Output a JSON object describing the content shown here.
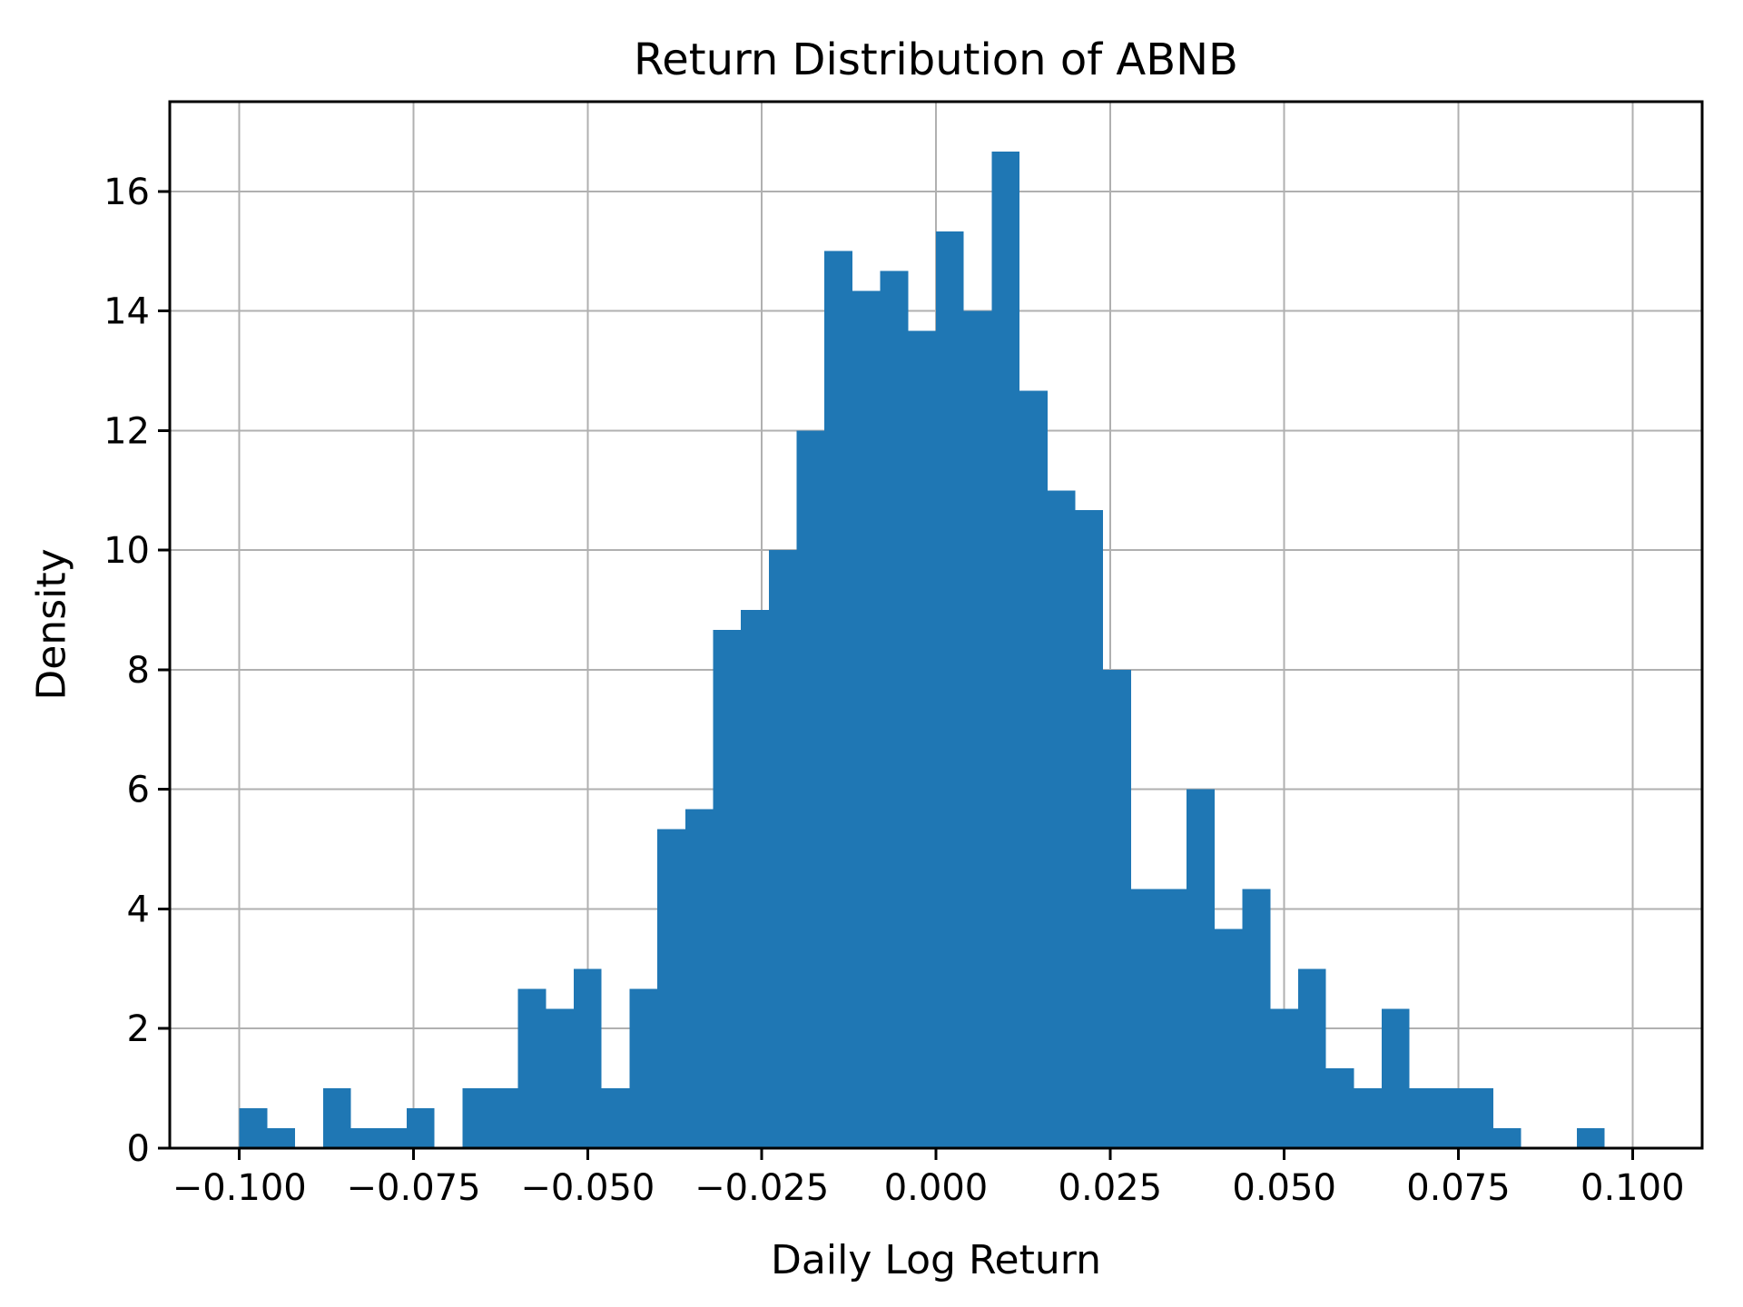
{
  "figure": {
    "background_color": "#ffffff"
  },
  "chart_data": {
    "type": "bar",
    "subtype": "histogram",
    "title": "Return Distribution of ABNB",
    "xlabel": "Daily Log Return",
    "ylabel": "Density",
    "bin_start": -0.1,
    "bin_width": 0.004,
    "densities": [
      0.6667,
      0.3333,
      0,
      1.0,
      0.3333,
      0.3333,
      0.6667,
      0,
      1.0,
      1.0,
      2.6667,
      2.3333,
      3.0,
      1.0,
      2.6667,
      5.3333,
      5.6667,
      8.6667,
      9.0,
      10.0,
      12.0,
      15.0,
      14.3333,
      14.6667,
      13.6667,
      15.3333,
      14.0,
      16.6667,
      12.6667,
      11.0,
      10.6667,
      8.0,
      4.3333,
      4.3333,
      6.0,
      3.6667,
      4.3333,
      2.3333,
      3.0,
      1.3333,
      1.0,
      2.3333,
      1.0,
      1.0,
      1.0,
      0.3333,
      0,
      0,
      0.3333
    ],
    "xlim": [
      -0.11,
      0.11
    ],
    "ylim": [
      0,
      17.5
    ],
    "xticks": [
      -0.1,
      -0.075,
      -0.05,
      -0.025,
      0.0,
      0.025,
      0.05,
      0.075,
      0.1
    ],
    "xtick_labels": [
      "−0.100",
      "−0.075",
      "−0.050",
      "−0.025",
      "0.000",
      "0.025",
      "0.050",
      "0.075",
      "0.100"
    ],
    "yticks": [
      0,
      2,
      4,
      6,
      8,
      10,
      12,
      14,
      16
    ],
    "ytick_labels": [
      "0",
      "2",
      "4",
      "6",
      "8",
      "10",
      "12",
      "14",
      "16"
    ],
    "grid": true,
    "legend": "none",
    "bar_color": "#1f77b4",
    "grid_color": "#b0b0b0",
    "axis_color": "#000000",
    "tick_font_size": 40
  }
}
